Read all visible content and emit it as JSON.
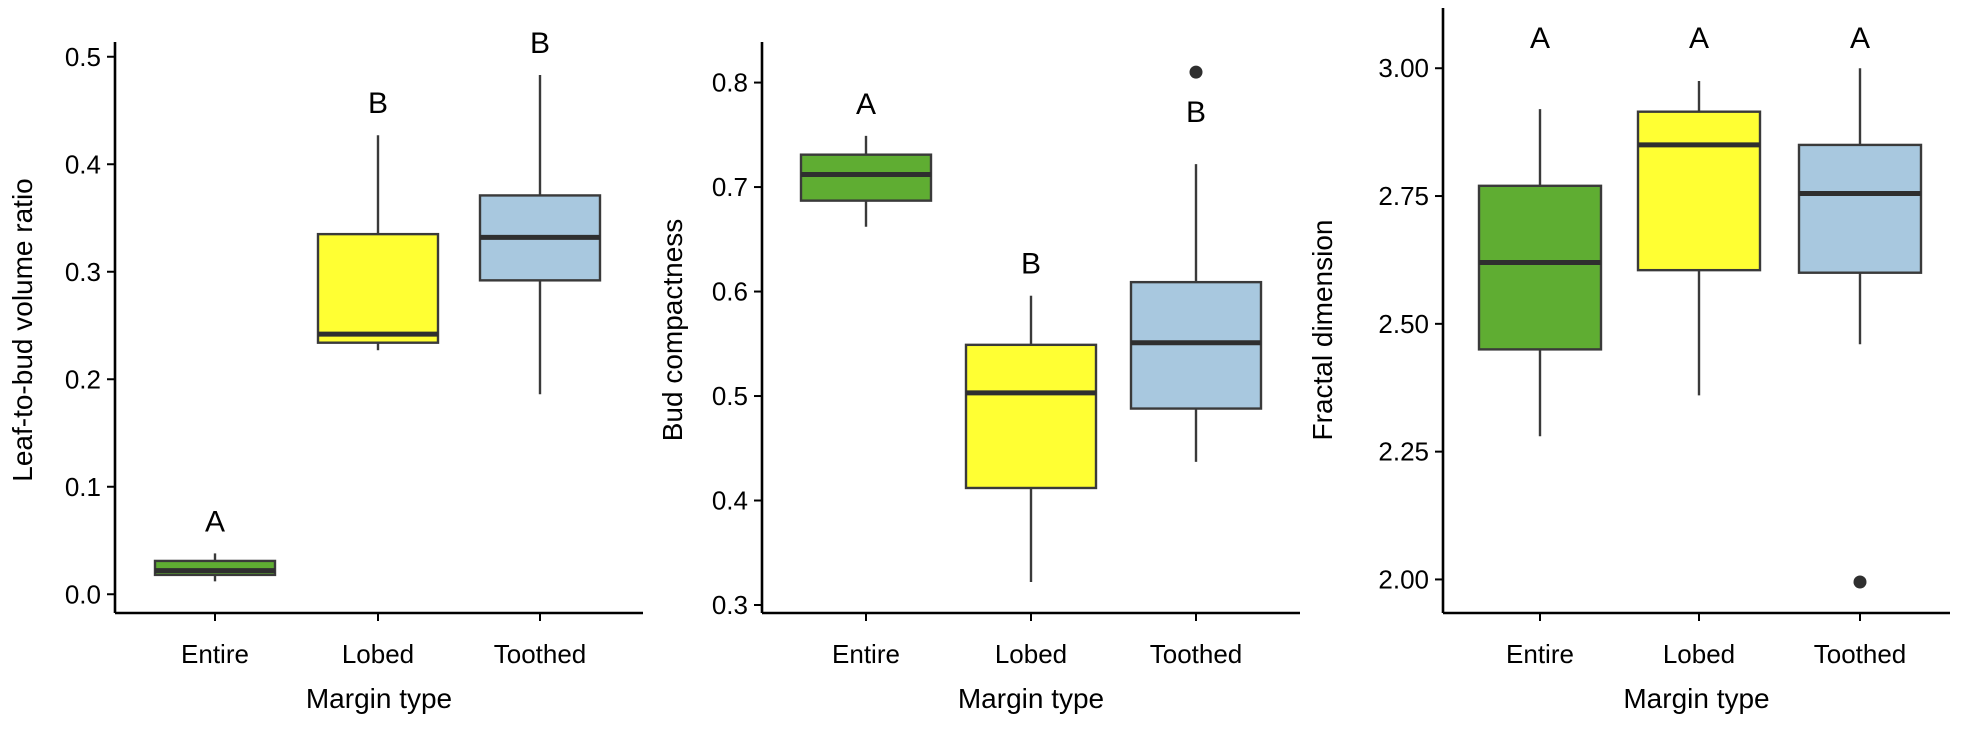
{
  "chart_data": [
    {
      "type": "box",
      "xlabel": "Margin type",
      "ylabel": "Leaf-to-bud volume ratio",
      "ylim": [
        -0.01,
        0.51
      ],
      "yticks": [
        0.0,
        0.1,
        0.2,
        0.3,
        0.4,
        0.5
      ],
      "ytick_labels": [
        "0.0",
        "0.1",
        "0.2",
        "0.3",
        "0.4",
        "0.5"
      ],
      "categories": [
        "Entire",
        "Lobed",
        "Toothed"
      ],
      "boxes": [
        {
          "category": "Entire",
          "min": 0.012,
          "q1": 0.018,
          "median": 0.022,
          "q3": 0.031,
          "max": 0.038,
          "outliers": [],
          "letter": "A",
          "color": "#5fad32"
        },
        {
          "category": "Lobed",
          "min": 0.227,
          "q1": 0.234,
          "median": 0.242,
          "q3": 0.335,
          "max": 0.427,
          "outliers": [],
          "letter": "B",
          "color": "#ffff33"
        },
        {
          "category": "Toothed",
          "min": 0.186,
          "q1": 0.292,
          "median": 0.332,
          "q3": 0.371,
          "max": 0.483,
          "outliers": [],
          "letter": "B",
          "color": "#a8c8df"
        }
      ]
    },
    {
      "type": "box",
      "xlabel": "Margin type",
      "ylabel": "Bud compactness",
      "ylim": [
        0.3,
        0.835
      ],
      "yticks": [
        0.3,
        0.4,
        0.5,
        0.6,
        0.7,
        0.8
      ],
      "ytick_labels": [
        "0.3",
        "0.4",
        "0.5",
        "0.6",
        "0.7",
        "0.8"
      ],
      "categories": [
        "Entire",
        "Lobed",
        "Toothed"
      ],
      "boxes": [
        {
          "category": "Entire",
          "min": 0.662,
          "q1": 0.687,
          "median": 0.712,
          "q3": 0.731,
          "max": 0.749,
          "outliers": [],
          "letter": "A",
          "color": "#5fad32"
        },
        {
          "category": "Lobed",
          "min": 0.322,
          "q1": 0.412,
          "median": 0.503,
          "q3": 0.549,
          "max": 0.596,
          "outliers": [],
          "letter": "B",
          "color": "#ffff33"
        },
        {
          "category": "Toothed",
          "min": 0.437,
          "q1": 0.488,
          "median": 0.551,
          "q3": 0.609,
          "max": 0.722,
          "outliers": [
            0.81
          ],
          "letter": "B",
          "color": "#a8c8df"
        }
      ]
    },
    {
      "type": "box",
      "xlabel": "Margin type",
      "ylabel": "Fractal dimension",
      "ylim": [
        1.95,
        3.11
      ],
      "yticks": [
        2.0,
        2.25,
        2.5,
        2.75,
        3.0
      ],
      "ytick_labels": [
        "2.00",
        "2.25",
        "2.50",
        "2.75",
        "3.00"
      ],
      "categories": [
        "Entire",
        "Lobed",
        "Toothed"
      ],
      "boxes": [
        {
          "category": "Entire",
          "min": 2.28,
          "q1": 2.45,
          "median": 2.62,
          "q3": 2.77,
          "max": 2.92,
          "outliers": [],
          "letter": "A",
          "color": "#5fad32"
        },
        {
          "category": "Lobed",
          "min": 2.36,
          "q1": 2.605,
          "median": 2.85,
          "q3": 2.915,
          "max": 2.975,
          "outliers": [],
          "letter": "A",
          "color": "#ffff33"
        },
        {
          "category": "Toothed",
          "min": 2.46,
          "q1": 2.6,
          "median": 2.755,
          "q3": 2.85,
          "max": 3.0,
          "outliers": [
            1.995
          ],
          "letter": "A",
          "color": "#a8c8df"
        }
      ]
    }
  ]
}
